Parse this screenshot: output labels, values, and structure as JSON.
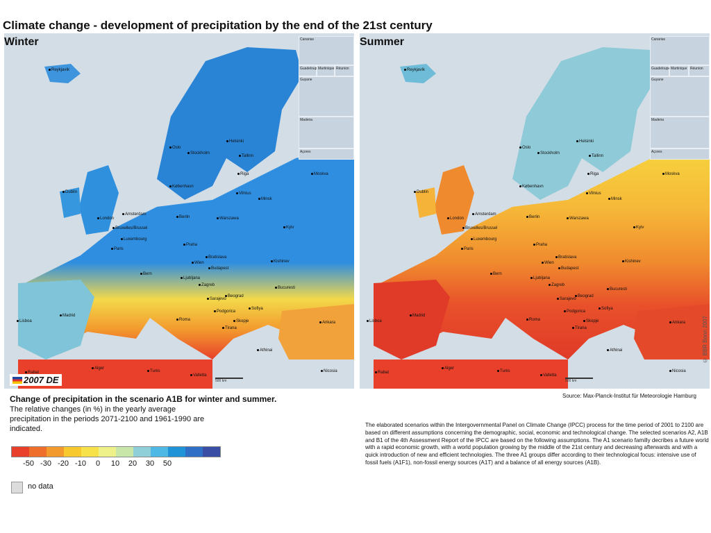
{
  "title": "Climate change - development of precipitation by the end of the 21st century",
  "panels": {
    "winter": {
      "label": "Winter",
      "tone": "wet"
    },
    "summer": {
      "label": "Summer",
      "tone": "dry"
    }
  },
  "insets": [
    "Canarias",
    "Guadeloupe",
    "Martinique",
    "Réunion",
    "Guyane",
    "Madeira",
    "Açores"
  ],
  "cities": [
    "Reykjavík",
    "Oslo",
    "Stockholm",
    "Helsinki",
    "Tallinn",
    "Riga",
    "Moskva",
    "Dublin",
    "København",
    "Vilnius",
    "Minsk",
    "London",
    "Amsterdam",
    "Berlin",
    "Warszawa",
    "Bruxelles/Brussel",
    "Luxembourg",
    "Kyiv",
    "Paris",
    "Praha",
    "Bratislava",
    "Wien",
    "Budapest",
    "Kishinev",
    "Bern",
    "Ljubljana",
    "Zagreb",
    "Beograd",
    "Bucuresti",
    "Sarajevo",
    "Sofiya",
    "Podgorica",
    "Skopje",
    "Tirana",
    "Roma",
    "Madrid",
    "Lisboa",
    "Ankara",
    "Athinai",
    "Valletta",
    "Tunis",
    "Alger",
    "Rabat",
    "Nicosia"
  ],
  "scale_label": "500 km",
  "logo": "2007 DE",
  "copyright": "© BBR Bonn 2007",
  "source": "Source: Max-Planck-Institut für Meteorologie Hamburg",
  "legend": {
    "title": "Change of precipitation in the scenario A1B for winter and summer.",
    "description": "The relative changes (in %) in the yearly average precipitation in the periods 2071-2100 and 1961-1990 are indicated.",
    "colors": [
      "#e8402a",
      "#ee6e2c",
      "#f39a2e",
      "#f8c82f",
      "#f7e24a",
      "#eef08a",
      "#c8e6a8",
      "#8fd0d8",
      "#4fb8e4",
      "#2194d8",
      "#2f6fc6",
      "#3a4ea4"
    ],
    "tick_labels": [
      "-50",
      "-30",
      "-20",
      "-10",
      "0",
      "10",
      "20",
      "30",
      "50"
    ],
    "no_data_label": "no data",
    "no_data_color": "#dcdcdc"
  },
  "ipcc_text": "The elaborated scenarios within the Intergovernmental Panel on Climate Change (IPCC) process for the time period of 2001 to 2100 are based on different assumptions concerning the demographic, social, economic and technological change. The selected scenarios A2, A1B and B1 of the 4th Assessment Report of the IPCC are based on the following assumptions. The A1 scenario familly decribes a future world with a rapid economic growth, with a world population growing by the middle of the 21st century and decreasing afterwards and with a quick introduction of new and efficient technologies. The three A1 groups differ according to their technological focus: intensive use of fossil fuels (A1F1), non-fossil energy sources (A1T) and a balance of all energy sources (A1B)."
}
